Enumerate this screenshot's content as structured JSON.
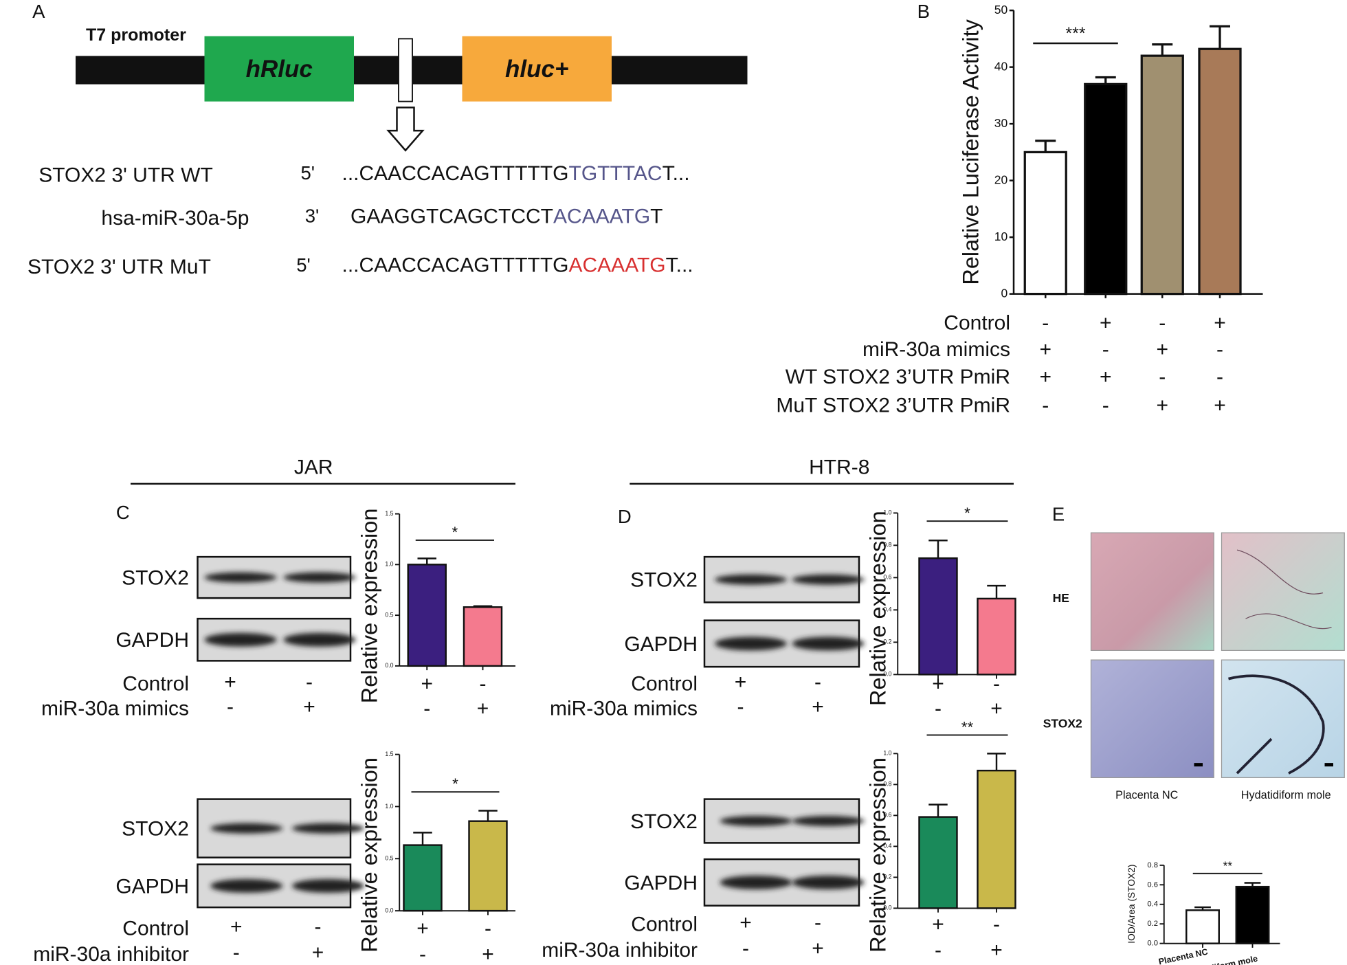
{
  "panel_labels": [
    "A",
    "B",
    "C",
    "D",
    "E"
  ],
  "headers": [
    "JAR",
    "HTR-8"
  ],
  "panel_a": {
    "promoter": "T7 promoter",
    "genes": [
      "hRluc",
      "hluc+"
    ],
    "rows": [
      {
        "name": "STOX2 3' UTR WT",
        "prime": "5'",
        "parts": [
          {
            "text": "...CAACCACAGTTTTTG",
            "color": "#111111"
          },
          {
            "text": "TGTTTAC",
            "color": "#55558a"
          },
          {
            "text": "T...",
            "color": "#111111"
          }
        ]
      },
      {
        "name": "hsa-miR-30a-5p",
        "prime": "3'",
        "parts": [
          {
            "text": "GAAGGTCAGCTCCT",
            "color": "#111111"
          },
          {
            "text": "ACAAATG",
            "color": "#55558a"
          },
          {
            "text": "T",
            "color": "#111111"
          }
        ]
      },
      {
        "name": "STOX2 3' UTR MuT",
        "prime": "5'",
        "parts": [
          {
            "text": "...CAACCACAGTTTTTG",
            "color": "#111111"
          },
          {
            "text": "ACAAATG",
            "color": "#d83030"
          },
          {
            "text": "T...",
            "color": "#111111"
          }
        ]
      }
    ]
  },
  "panel_e": {
    "rows": [
      "HE",
      "STOX2"
    ],
    "columns": [
      "Placenta NC",
      "Hydatidiform mole"
    ]
  },
  "chart_data": [
    {
      "type": "bar",
      "ylabel": "Relative Luciferase Activity",
      "categories": [
        null,
        null,
        null,
        null
      ],
      "values": [
        25,
        37,
        42,
        43.2
      ],
      "errors": [
        2,
        1.2,
        2,
        4
      ],
      "colors": [
        "#ffffff",
        "#000000",
        "#a09070",
        "#a87a58"
      ],
      "ylim": [
        0,
        50
      ],
      "yticks": [
        0,
        10,
        20,
        30,
        40,
        50
      ],
      "significance": [
        {
          "label": "***",
          "between": [
            0,
            1
          ]
        }
      ],
      "conditions": [
        {
          "name": "Control",
          "marks": [
            "-",
            "+",
            "-",
            "+"
          ]
        },
        {
          "name": "miR-30a mimics",
          "marks": [
            "+",
            "-",
            "+",
            "-"
          ]
        },
        {
          "name": "WT STOX2 3’UTR PmiR",
          "marks": [
            "+",
            "+",
            "-",
            "-"
          ]
        },
        {
          "name": "MuT STOX2 3’UTR PmiR",
          "marks": [
            "-",
            "-",
            "+",
            "+"
          ]
        }
      ]
    },
    {
      "type": "bar",
      "ylabel": "Relative expression",
      "categories": [
        null,
        null
      ],
      "values": [
        1.0,
        0.58
      ],
      "errors": [
        0.06,
        0.01
      ],
      "colors": [
        "#3b1f7f",
        "#f47a8e"
      ],
      "ylim": [
        0,
        1.5
      ],
      "yticks": [
        {
          "value": 0,
          "label": "0.0"
        },
        0.5,
        {
          "value": 1,
          "label": "1.0"
        },
        1.5
      ],
      "significance": [
        {
          "label": "*",
          "between": [
            0,
            1
          ]
        }
      ],
      "blot_rows": [
        "STOX2",
        "GAPDH"
      ],
      "conditions": [
        {
          "name": "Control",
          "marks": [
            "+",
            "-"
          ]
        },
        {
          "name": "miR-30a mimics",
          "marks": [
            "-",
            "+"
          ]
        }
      ]
    },
    {
      "type": "bar",
      "ylabel": "Relative expression",
      "categories": [
        null,
        null
      ],
      "values": [
        0.63,
        0.86
      ],
      "errors": [
        0.12,
        0.1
      ],
      "colors": [
        "#1a8a5a",
        "#c9b84a"
      ],
      "ylim": [
        0,
        1.5
      ],
      "yticks": [
        {
          "value": 0,
          "label": "0.0"
        },
        0.5,
        {
          "value": 1,
          "label": "1.0"
        },
        1.5
      ],
      "significance": [
        {
          "label": "*",
          "between": [
            0,
            1
          ]
        }
      ],
      "blot_rows": [
        "STOX2",
        "GAPDH"
      ],
      "conditions": [
        {
          "name": "Control",
          "marks": [
            "+",
            "-"
          ]
        },
        {
          "name": "miR-30a inhibitor",
          "marks": [
            "-",
            "+"
          ]
        }
      ]
    },
    {
      "type": "bar",
      "ylabel": "Relative expression",
      "categories": [
        null,
        null
      ],
      "values": [
        0.72,
        0.47
      ],
      "errors": [
        0.11,
        0.08
      ],
      "colors": [
        "#3b1f7f",
        "#f47a8e"
      ],
      "ylim": [
        0,
        1
      ],
      "yticks": [
        {
          "value": 0,
          "label": "0.0"
        },
        0.2,
        0.4,
        0.6,
        0.8,
        {
          "value": 1,
          "label": "1.0"
        }
      ],
      "significance": [
        {
          "label": "*",
          "between": [
            0,
            1
          ]
        }
      ],
      "blot_rows": [
        "STOX2",
        "GAPDH"
      ],
      "conditions": [
        {
          "name": "Control",
          "marks": [
            "+",
            "-"
          ]
        },
        {
          "name": "miR-30a mimics",
          "marks": [
            "-",
            "+"
          ]
        }
      ]
    },
    {
      "type": "bar",
      "ylabel": "Relative expression",
      "categories": [
        null,
        null
      ],
      "values": [
        0.59,
        0.89
      ],
      "errors": [
        0.08,
        0.11
      ],
      "colors": [
        "#1a8a5a",
        "#c9b84a"
      ],
      "ylim": [
        0,
        1
      ],
      "yticks": [
        {
          "value": 0,
          "label": "0.0"
        },
        0.2,
        0.4,
        0.6,
        0.8,
        {
          "value": 1,
          "label": "1.0"
        }
      ],
      "significance": [
        {
          "label": "**",
          "between": [
            0,
            1
          ]
        }
      ],
      "blot_rows": [
        "STOX2",
        "GAPDH"
      ],
      "conditions": [
        {
          "name": "Control",
          "marks": [
            "+",
            "-"
          ]
        },
        {
          "name": "miR-30a inhibitor",
          "marks": [
            "-",
            "+"
          ]
        }
      ]
    },
    {
      "type": "bar",
      "ylabel": "IOD/Area (STOX2)",
      "categories": [
        "Placenta NC",
        "Hydatidiform mole"
      ],
      "values": [
        0.34,
        0.58
      ],
      "errors": [
        0.03,
        0.04
      ],
      "colors": [
        "#ffffff",
        "#000000"
      ],
      "ylim": [
        0,
        0.8
      ],
      "yticks": [
        {
          "value": 0,
          "label": "0.0"
        },
        0.2,
        0.4,
        0.6,
        0.8
      ],
      "significance": [
        {
          "label": "**",
          "between": [
            0,
            1
          ]
        }
      ]
    }
  ]
}
